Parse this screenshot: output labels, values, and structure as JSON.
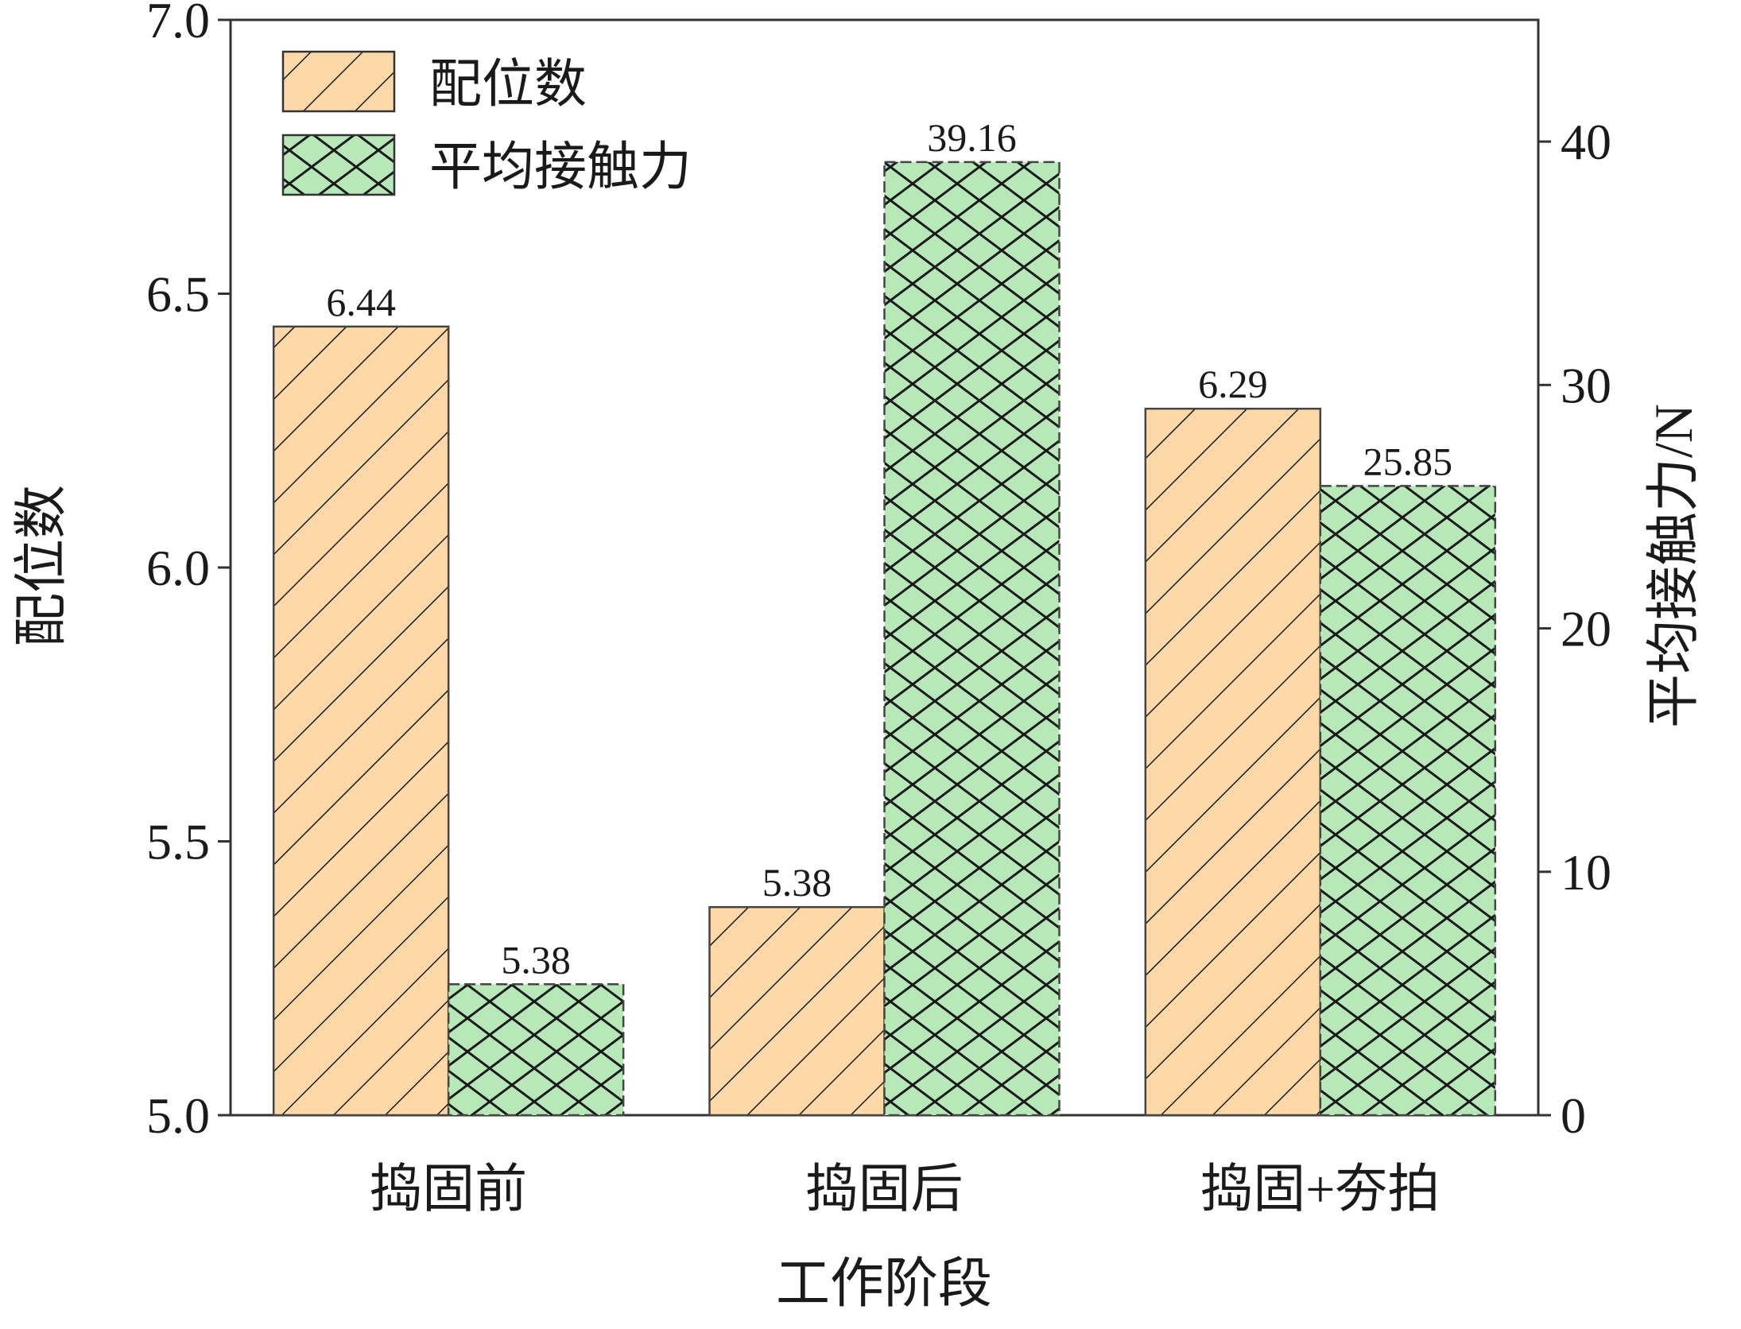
{
  "chart_data": {
    "type": "bar",
    "categories": [
      "捣固前",
      "捣固后",
      "捣固+夯拍"
    ],
    "xlabel": "工作阶段",
    "ylabel": "配位数",
    "y2label": "平均接触力/N",
    "ylim": [
      5.0,
      7.0
    ],
    "y2lim": [
      0,
      45
    ],
    "yticks": [
      "5.0",
      "5.5",
      "6.0",
      "6.5",
      "7.0"
    ],
    "y2ticks": [
      "0",
      "10",
      "20",
      "30",
      "40"
    ],
    "grid": false,
    "legend_position": "top-left",
    "series": [
      {
        "name": "配位数",
        "axis": "left",
        "values": [
          6.44,
          5.38,
          6.29
        ],
        "labels": [
          "6.44",
          "5.38",
          "6.29"
        ],
        "color": "#fdd9a8",
        "hatch": "diagonal"
      },
      {
        "name": "平均接触力",
        "axis": "right",
        "values": [
          5.38,
          39.16,
          25.85
        ],
        "labels": [
          "5.38",
          "39.16",
          "25.85"
        ],
        "color": "#b6e8b8",
        "hatch": "crosshatch"
      }
    ]
  }
}
